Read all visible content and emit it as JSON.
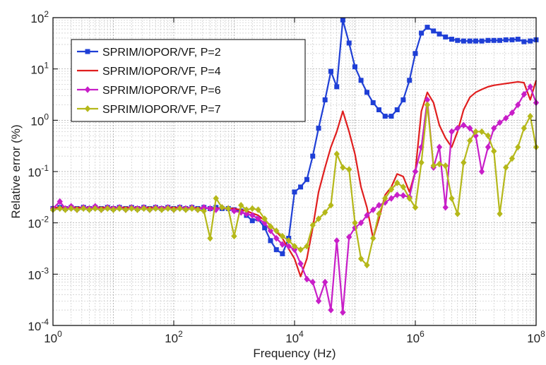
{
  "chart_data": {
    "type": "line",
    "title": "",
    "xlabel": "Frequency (Hz)",
    "ylabel": "Relative error (%)",
    "x_scale": "log",
    "y_scale": "log",
    "xlim": [
      1,
      100000000
    ],
    "ylim": [
      0.0001,
      100
    ],
    "x_ticks": [
      {
        "base": "10",
        "exp": "0",
        "value": 1
      },
      {
        "base": "10",
        "exp": "2",
        "value": 100
      },
      {
        "base": "10",
        "exp": "4",
        "value": 10000
      },
      {
        "base": "10",
        "exp": "6",
        "value": 1000000
      },
      {
        "base": "10",
        "exp": "8",
        "value": 100000000
      }
    ],
    "y_ticks": [
      {
        "base": "10",
        "exp": "-4",
        "value": 0.0001
      },
      {
        "base": "10",
        "exp": "-3",
        "value": 0.001
      },
      {
        "base": "10",
        "exp": "-2",
        "value": 0.01
      },
      {
        "base": "10",
        "exp": "-1",
        "value": 0.1
      },
      {
        "base": "10",
        "exp": "0",
        "value": 1
      },
      {
        "base": "10",
        "exp": "1",
        "value": 10
      },
      {
        "base": "10",
        "exp": "2",
        "value": 100
      }
    ],
    "grid": true,
    "legend_position": "top-left",
    "series": [
      {
        "name": "SPRIM/IOPOR/VF, P=2",
        "color": "#1f3fd6",
        "marker": "square",
        "points": [
          [
            1,
            0.019
          ],
          [
            1.3,
            0.02
          ],
          [
            1.6,
            0.019
          ],
          [
            2,
            0.02
          ],
          [
            2.5,
            0.019
          ],
          [
            3.2,
            0.02
          ],
          [
            4,
            0.019
          ],
          [
            5,
            0.02
          ],
          [
            6.3,
            0.019
          ],
          [
            8,
            0.02
          ],
          [
            10,
            0.019
          ],
          [
            12.6,
            0.02
          ],
          [
            16,
            0.019
          ],
          [
            20,
            0.02
          ],
          [
            25,
            0.019
          ],
          [
            32,
            0.02
          ],
          [
            40,
            0.019
          ],
          [
            50,
            0.02
          ],
          [
            63,
            0.019
          ],
          [
            80,
            0.02
          ],
          [
            100,
            0.019
          ],
          [
            126,
            0.02
          ],
          [
            158,
            0.019
          ],
          [
            200,
            0.02
          ],
          [
            250,
            0.019
          ],
          [
            316,
            0.02
          ],
          [
            400,
            0.019
          ],
          [
            500,
            0.02
          ],
          [
            630,
            0.019
          ],
          [
            800,
            0.019
          ],
          [
            1000,
            0.018
          ],
          [
            1300,
            0.017
          ],
          [
            1600,
            0.014
          ],
          [
            2000,
            0.011
          ],
          [
            2500,
            0.012
          ],
          [
            3200,
            0.008
          ],
          [
            4000,
            0.0045
          ],
          [
            5000,
            0.003
          ],
          [
            6300,
            0.0025
          ],
          [
            8000,
            0.005
          ],
          [
            10000,
            0.04
          ],
          [
            12600,
            0.05
          ],
          [
            16000,
            0.07
          ],
          [
            20000,
            0.2
          ],
          [
            25000,
            0.7
          ],
          [
            32000,
            2.5
          ],
          [
            40000,
            9
          ],
          [
            50000,
            4.5
          ],
          [
            63000,
            90
          ],
          [
            80000,
            32
          ],
          [
            100000,
            11
          ],
          [
            126000,
            6
          ],
          [
            158000,
            3.5
          ],
          [
            200000,
            2.2
          ],
          [
            250000,
            1.6
          ],
          [
            316000,
            1.2
          ],
          [
            400000,
            1.2
          ],
          [
            500000,
            1.6
          ],
          [
            630000,
            2.5
          ],
          [
            800000,
            6
          ],
          [
            1000000,
            20
          ],
          [
            1260000,
            50
          ],
          [
            1580000,
            65
          ],
          [
            2000000,
            55
          ],
          [
            2500000,
            48
          ],
          [
            3160000,
            42
          ],
          [
            4000000,
            38
          ],
          [
            5000000,
            36
          ],
          [
            6300000,
            35
          ],
          [
            8000000,
            35
          ],
          [
            10000000,
            35
          ],
          [
            12600000,
            35
          ],
          [
            16000000,
            36
          ],
          [
            20000000,
            36
          ],
          [
            25000000,
            36
          ],
          [
            31600000,
            37
          ],
          [
            40000000,
            37
          ],
          [
            50000000,
            38
          ],
          [
            63000000,
            34
          ],
          [
            80000000,
            35
          ],
          [
            100000000,
            37
          ]
        ]
      },
      {
        "name": "SPRIM/IOPOR/VF, P=4",
        "color": "#e01e1e",
        "marker": "none",
        "points": [
          [
            1,
            0.02
          ],
          [
            10,
            0.02
          ],
          [
            100,
            0.02
          ],
          [
            1000,
            0.019
          ],
          [
            1600,
            0.017
          ],
          [
            2500,
            0.014
          ],
          [
            4000,
            0.009
          ],
          [
            6300,
            0.005
          ],
          [
            10000,
            0.002
          ],
          [
            12600,
            0.0009
          ],
          [
            16000,
            0.002
          ],
          [
            20000,
            0.008
          ],
          [
            25000,
            0.04
          ],
          [
            32000,
            0.12
          ],
          [
            40000,
            0.3
          ],
          [
            50000,
            0.6
          ],
          [
            63000,
            1.5
          ],
          [
            80000,
            0.6
          ],
          [
            100000,
            0.22
          ],
          [
            126000,
            0.05
          ],
          [
            158000,
            0.02
          ],
          [
            200000,
            0.005
          ],
          [
            250000,
            0.012
          ],
          [
            316000,
            0.035
          ],
          [
            400000,
            0.05
          ],
          [
            500000,
            0.09
          ],
          [
            630000,
            0.08
          ],
          [
            800000,
            0.04
          ],
          [
            1000000,
            0.1
          ],
          [
            1260000,
            1.5
          ],
          [
            1580000,
            3.5
          ],
          [
            2000000,
            2.2
          ],
          [
            2500000,
            0.8
          ],
          [
            3160000,
            0.45
          ],
          [
            4000000,
            0.3
          ],
          [
            5000000,
            0.6
          ],
          [
            6300000,
            1.6
          ],
          [
            8000000,
            2.8
          ],
          [
            10000000,
            3.5
          ],
          [
            12600000,
            4
          ],
          [
            16000000,
            4.5
          ],
          [
            20000000,
            4.8
          ],
          [
            31600000,
            5.2
          ],
          [
            50000000,
            5.6
          ],
          [
            63000000,
            5.4
          ],
          [
            80000000,
            2.5
          ],
          [
            100000000,
            6
          ]
        ]
      },
      {
        "name": "SPRIM/IOPOR/VF, P=6",
        "color": "#c81ec8",
        "marker": "diamond",
        "points": [
          [
            1,
            0.019
          ],
          [
            1.3,
            0.026
          ],
          [
            1.6,
            0.019
          ],
          [
            2,
            0.021
          ],
          [
            2.5,
            0.018
          ],
          [
            3.2,
            0.02
          ],
          [
            4,
            0.019
          ],
          [
            5,
            0.021
          ],
          [
            6.3,
            0.018
          ],
          [
            8,
            0.02
          ],
          [
            10,
            0.019
          ],
          [
            12.6,
            0.02
          ],
          [
            16,
            0.018
          ],
          [
            20,
            0.02
          ],
          [
            25,
            0.019
          ],
          [
            32,
            0.02
          ],
          [
            40,
            0.018
          ],
          [
            50,
            0.02
          ],
          [
            63,
            0.019
          ],
          [
            80,
            0.02
          ],
          [
            100,
            0.018
          ],
          [
            126,
            0.02
          ],
          [
            158,
            0.019
          ],
          [
            200,
            0.02
          ],
          [
            250,
            0.018
          ],
          [
            316,
            0.02
          ],
          [
            400,
            0.019
          ],
          [
            500,
            0.018
          ],
          [
            630,
            0.02
          ],
          [
            800,
            0.019
          ],
          [
            1000,
            0.017
          ],
          [
            1300,
            0.016
          ],
          [
            1600,
            0.015
          ],
          [
            2000,
            0.014
          ],
          [
            2500,
            0.012
          ],
          [
            3200,
            0.01
          ],
          [
            4000,
            0.007
          ],
          [
            5000,
            0.005
          ],
          [
            6300,
            0.0038
          ],
          [
            8000,
            0.0035
          ],
          [
            10000,
            0.003
          ],
          [
            12600,
            0.0016
          ],
          [
            16000,
            0.0008
          ],
          [
            20000,
            0.0007
          ],
          [
            25000,
            0.0003
          ],
          [
            32000,
            0.0007
          ],
          [
            40000,
            0.0002
          ],
          [
            50000,
            0.0045
          ],
          [
            63000,
            0.00018
          ],
          [
            80000,
            0.0053
          ],
          [
            100000,
            0.008
          ],
          [
            126000,
            0.01
          ],
          [
            158000,
            0.014
          ],
          [
            200000,
            0.018
          ],
          [
            250000,
            0.022
          ],
          [
            316000,
            0.025
          ],
          [
            400000,
            0.03
          ],
          [
            500000,
            0.035
          ],
          [
            630000,
            0.034
          ],
          [
            800000,
            0.032
          ],
          [
            1000000,
            0.1
          ],
          [
            1260000,
            0.3
          ],
          [
            1580000,
            2.5
          ],
          [
            2000000,
            0.12
          ],
          [
            2500000,
            0.3
          ],
          [
            3160000,
            0.02
          ],
          [
            4000000,
            0.6
          ],
          [
            5000000,
            0.7
          ],
          [
            6300000,
            0.8
          ],
          [
            8000000,
            0.7
          ],
          [
            10000000,
            0.5
          ],
          [
            12600000,
            0.1
          ],
          [
            16000000,
            0.3
          ],
          [
            20000000,
            0.7
          ],
          [
            25000000,
            0.9
          ],
          [
            31600000,
            1.1
          ],
          [
            40000000,
            1.4
          ],
          [
            50000000,
            2
          ],
          [
            63000000,
            3.2
          ],
          [
            80000000,
            4.5
          ],
          [
            100000000,
            2.2
          ]
        ]
      },
      {
        "name": "SPRIM/IOPOR/VF, P=7",
        "color": "#b5b81a",
        "marker": "diamond",
        "points": [
          [
            1,
            0.018
          ],
          [
            1.3,
            0.019
          ],
          [
            1.6,
            0.018
          ],
          [
            2,
            0.019
          ],
          [
            2.5,
            0.018
          ],
          [
            3.2,
            0.019
          ],
          [
            4,
            0.018
          ],
          [
            5,
            0.019
          ],
          [
            6.3,
            0.018
          ],
          [
            8,
            0.019
          ],
          [
            10,
            0.018
          ],
          [
            12.6,
            0.019
          ],
          [
            16,
            0.018
          ],
          [
            20,
            0.019
          ],
          [
            25,
            0.018
          ],
          [
            32,
            0.019
          ],
          [
            40,
            0.018
          ],
          [
            50,
            0.019
          ],
          [
            63,
            0.018
          ],
          [
            80,
            0.019
          ],
          [
            100,
            0.018
          ],
          [
            126,
            0.019
          ],
          [
            158,
            0.018
          ],
          [
            200,
            0.019
          ],
          [
            250,
            0.018
          ],
          [
            316,
            0.017
          ],
          [
            400,
            0.005
          ],
          [
            500,
            0.03
          ],
          [
            630,
            0.02
          ],
          [
            800,
            0.019
          ],
          [
            1000,
            0.0055
          ],
          [
            1300,
            0.022
          ],
          [
            1600,
            0.018
          ],
          [
            2000,
            0.019
          ],
          [
            2500,
            0.018
          ],
          [
            3200,
            0.012
          ],
          [
            4000,
            0.0085
          ],
          [
            5000,
            0.007
          ],
          [
            6300,
            0.0055
          ],
          [
            8000,
            0.0045
          ],
          [
            10000,
            0.0035
          ],
          [
            12600,
            0.003
          ],
          [
            16000,
            0.0035
          ],
          [
            20000,
            0.009
          ],
          [
            25000,
            0.012
          ],
          [
            32000,
            0.016
          ],
          [
            40000,
            0.022
          ],
          [
            50000,
            0.22
          ],
          [
            63000,
            0.12
          ],
          [
            80000,
            0.11
          ],
          [
            100000,
            0.01
          ],
          [
            126000,
            0.002
          ],
          [
            158000,
            0.0015
          ],
          [
            200000,
            0.005
          ],
          [
            250000,
            0.015
          ],
          [
            316000,
            0.03
          ],
          [
            400000,
            0.045
          ],
          [
            500000,
            0.06
          ],
          [
            630000,
            0.05
          ],
          [
            800000,
            0.03
          ],
          [
            1000000,
            0.02
          ],
          [
            1260000,
            0.15
          ],
          [
            1580000,
            2
          ],
          [
            2000000,
            0.13
          ],
          [
            2500000,
            0.14
          ],
          [
            3160000,
            0.13
          ],
          [
            4000000,
            0.03
          ],
          [
            5000000,
            0.015
          ],
          [
            6300000,
            0.15
          ],
          [
            8000000,
            0.4
          ],
          [
            10000000,
            0.6
          ],
          [
            12600000,
            0.6
          ],
          [
            16000000,
            0.5
          ],
          [
            20000000,
            0.25
          ],
          [
            25000000,
            0.015
          ],
          [
            31600000,
            0.12
          ],
          [
            40000000,
            0.18
          ],
          [
            50000000,
            0.3
          ],
          [
            63000000,
            0.7
          ],
          [
            80000000,
            1.2
          ],
          [
            100000000,
            0.3
          ]
        ]
      }
    ]
  }
}
